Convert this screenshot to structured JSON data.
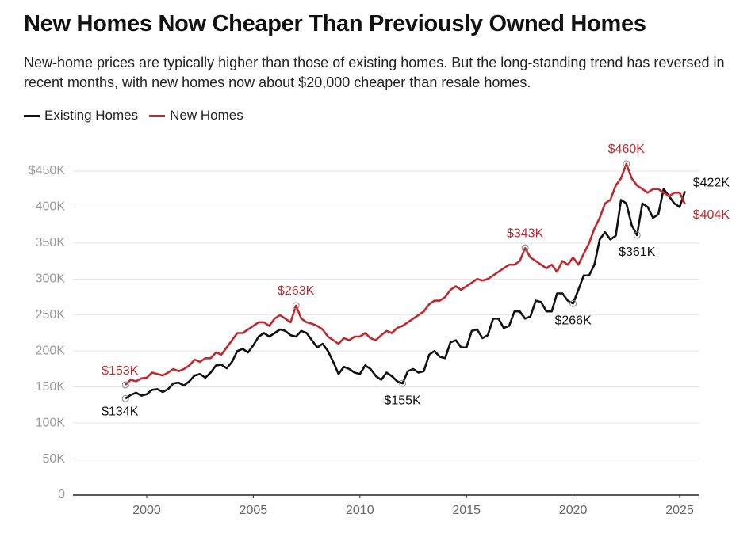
{
  "chart_data": {
    "type": "line",
    "title": "New Homes Now Cheaper Than Previously Owned Homes",
    "subtitle": "New-home prices are typically higher than those of existing homes. But the long-standing trend has reversed in recent months, with new homes now about $20,000 cheaper than resale homes.",
    "x": [
      1999,
      1999.25,
      1999.5,
      1999.75,
      2000,
      2000.25,
      2000.5,
      2000.75,
      2001,
      2001.25,
      2001.5,
      2001.75,
      2002,
      2002.25,
      2002.5,
      2002.75,
      2003,
      2003.25,
      2003.5,
      2003.75,
      2004,
      2004.25,
      2004.5,
      2004.75,
      2005,
      2005.25,
      2005.5,
      2005.75,
      2006,
      2006.25,
      2006.5,
      2006.75,
      2007,
      2007.25,
      2007.5,
      2007.75,
      2008,
      2008.25,
      2008.5,
      2008.75,
      2009,
      2009.25,
      2009.5,
      2009.75,
      2010,
      2010.25,
      2010.5,
      2010.75,
      2011,
      2011.25,
      2011.5,
      2011.75,
      2012,
      2012.25,
      2012.5,
      2012.75,
      2013,
      2013.25,
      2013.5,
      2013.75,
      2014,
      2014.25,
      2014.5,
      2014.75,
      2015,
      2015.25,
      2015.5,
      2015.75,
      2016,
      2016.25,
      2016.5,
      2016.75,
      2017,
      2017.25,
      2017.5,
      2017.75,
      2018,
      2018.25,
      2018.5,
      2018.75,
      2019,
      2019.25,
      2019.5,
      2019.75,
      2020,
      2020.25,
      2020.5,
      2020.75,
      2021,
      2021.25,
      2021.5,
      2021.75,
      2022,
      2022.25,
      2022.5,
      2022.75,
      2023,
      2023.25,
      2023.5,
      2023.75,
      2024,
      2024.25,
      2024.5,
      2024.75,
      2025,
      2025.25
    ],
    "series": [
      {
        "name": "Existing Homes",
        "color": "#111111",
        "values": [
          134,
          139,
          142,
          138,
          140,
          146,
          147,
          143,
          147,
          155,
          156,
          152,
          158,
          166,
          168,
          163,
          170,
          180,
          181,
          176,
          185,
          200,
          203,
          198,
          208,
          220,
          225,
          220,
          225,
          230,
          228,
          222,
          220,
          228,
          225,
          215,
          205,
          210,
          200,
          185,
          168,
          178,
          175,
          170,
          168,
          180,
          175,
          165,
          160,
          170,
          165,
          158,
          155,
          172,
          175,
          170,
          172,
          195,
          200,
          192,
          190,
          212,
          215,
          205,
          205,
          228,
          230,
          218,
          222,
          245,
          245,
          232,
          235,
          255,
          255,
          245,
          248,
          270,
          268,
          255,
          255,
          280,
          280,
          270,
          266,
          285,
          305,
          305,
          320,
          355,
          365,
          355,
          360,
          410,
          405,
          375,
          361,
          405,
          400,
          385,
          390,
          425,
          415,
          405,
          400,
          422
        ],
        "annotations": [
          {
            "x": 1999,
            "value": 134,
            "label": "$134K"
          },
          {
            "x": 2012,
            "value": 155,
            "label": "$155K"
          },
          {
            "x": 2020,
            "value": 266,
            "label": "$266K"
          },
          {
            "x": 2023,
            "value": 361,
            "label": "$361K"
          },
          {
            "x": 2025.25,
            "value": 422,
            "label": "$422K"
          }
        ]
      },
      {
        "name": "New Homes",
        "color": "#c0282d",
        "values": [
          153,
          160,
          158,
          162,
          163,
          170,
          168,
          166,
          170,
          175,
          172,
          175,
          180,
          188,
          185,
          190,
          190,
          198,
          195,
          205,
          215,
          225,
          225,
          230,
          235,
          240,
          240,
          235,
          245,
          250,
          245,
          240,
          263,
          245,
          240,
          238,
          235,
          230,
          220,
          215,
          210,
          218,
          215,
          220,
          220,
          225,
          218,
          215,
          222,
          228,
          225,
          232,
          235,
          240,
          245,
          250,
          255,
          265,
          270,
          270,
          275,
          285,
          290,
          285,
          290,
          295,
          300,
          298,
          300,
          305,
          310,
          315,
          320,
          320,
          325,
          343,
          330,
          325,
          320,
          315,
          320,
          310,
          325,
          320,
          330,
          320,
          335,
          350,
          370,
          385,
          405,
          410,
          430,
          440,
          460,
          440,
          430,
          425,
          420,
          425,
          425,
          420,
          415,
          420,
          420,
          404
        ],
        "annotations": [
          {
            "x": 1999,
            "value": 153,
            "label": "$153K"
          },
          {
            "x": 2007,
            "value": 263,
            "label": "$263K"
          },
          {
            "x": 2017.75,
            "value": 343,
            "label": "$343K"
          },
          {
            "x": 2022.5,
            "value": 460,
            "label": "$460K"
          },
          {
            "x": 2025.25,
            "value": 404,
            "label": "$404K"
          }
        ]
      }
    ],
    "xlim": [
      1996.54,
      2025.93
    ],
    "xticks": [
      2000,
      2005,
      2010,
      2015,
      2020,
      2025
    ],
    "ylim": [
      0,
      450
    ],
    "yticks": [
      0,
      {
        "value": 50,
        "label": "50K"
      },
      {
        "value": 100,
        "label": "100K"
      },
      {
        "value": 150,
        "label": "150K"
      },
      {
        "value": 200,
        "label": "200K"
      },
      {
        "value": 250,
        "label": "250K"
      },
      {
        "value": 300,
        "label": "300K"
      },
      {
        "value": 350,
        "label": "350K"
      },
      {
        "value": 400,
        "label": "400K"
      },
      {
        "value": 450,
        "label": "$450K"
      }
    ],
    "grid": true,
    "legend": "top-left"
  }
}
